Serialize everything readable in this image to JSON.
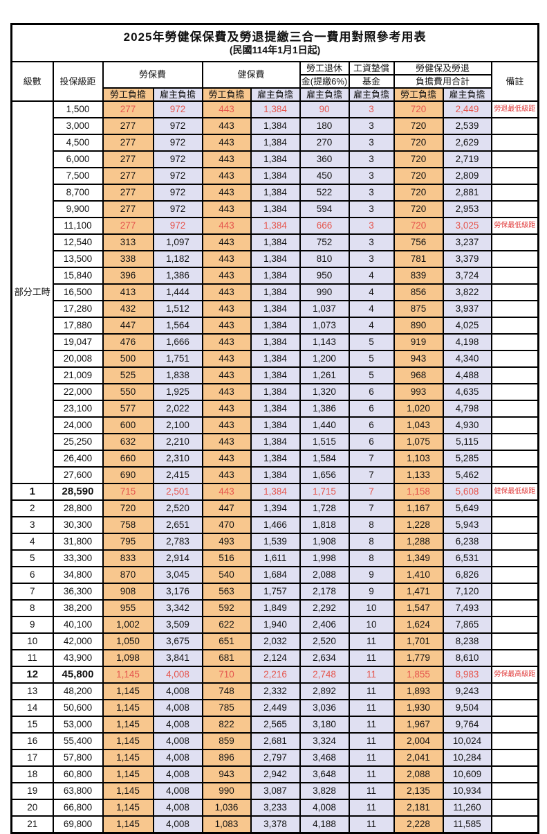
{
  "title": "2025年勞健保保費及勞退提繳三合一費用對照參考用表",
  "subtitle": "(民國114年1月1日起)",
  "header": {
    "level": "級數",
    "bracket": "投保級距",
    "labor_insurance": "勞保費",
    "health_insurance": "健保費",
    "pension_line1": "勞工退休",
    "pension_line2": "金(提繳6%)",
    "wage_fund_line1": "工資墊償",
    "wage_fund_line2": "基金",
    "total_line1": "勞健保及勞退",
    "total_line2": "負擔費用合計",
    "note": "備註",
    "employee_burden": "勞工負擔",
    "employer_burden": "雇主負擔"
  },
  "colors": {
    "employee_bg": "#f8c78e",
    "employer_bg": "#e0e0f2",
    "highlight_number_text": "#e5564e",
    "note_text": "#e03c3c",
    "border": "#000000"
  },
  "table": {
    "part_time_label": "部分工時",
    "part_time_rowspan": 23,
    "columns_order": [
      "level",
      "bracket",
      "labor_employee",
      "labor_employer",
      "health_employee",
      "health_employer",
      "pension_employer",
      "fund_employer",
      "total_employee",
      "total_employer",
      "note"
    ],
    "rows": [
      {
        "cells": [
          "",
          "1,500",
          "277",
          "972",
          "443",
          "1,384",
          "90",
          "3",
          "720",
          "2,449",
          "勞退最低級距"
        ],
        "red": true,
        "bold": false
      },
      {
        "cells": [
          "",
          "3,000",
          "277",
          "972",
          "443",
          "1,384",
          "180",
          "3",
          "720",
          "2,539",
          ""
        ],
        "red": false,
        "bold": false
      },
      {
        "cells": [
          "",
          "4,500",
          "277",
          "972",
          "443",
          "1,384",
          "270",
          "3",
          "720",
          "2,629",
          ""
        ],
        "red": false,
        "bold": false
      },
      {
        "cells": [
          "",
          "6,000",
          "277",
          "972",
          "443",
          "1,384",
          "360",
          "3",
          "720",
          "2,719",
          ""
        ],
        "red": false,
        "bold": false
      },
      {
        "cells": [
          "",
          "7,500",
          "277",
          "972",
          "443",
          "1,384",
          "450",
          "3",
          "720",
          "2,809",
          ""
        ],
        "red": false,
        "bold": false
      },
      {
        "cells": [
          "",
          "8,700",
          "277",
          "972",
          "443",
          "1,384",
          "522",
          "3",
          "720",
          "2,881",
          ""
        ],
        "red": false,
        "bold": false
      },
      {
        "cells": [
          "",
          "9,900",
          "277",
          "972",
          "443",
          "1,384",
          "594",
          "3",
          "720",
          "2,953",
          ""
        ],
        "red": false,
        "bold": false
      },
      {
        "cells": [
          "",
          "11,100",
          "277",
          "972",
          "443",
          "1,384",
          "666",
          "3",
          "720",
          "3,025",
          "勞保最低級距"
        ],
        "red": true,
        "bold": false
      },
      {
        "cells": [
          "",
          "12,540",
          "313",
          "1,097",
          "443",
          "1,384",
          "752",
          "3",
          "756",
          "3,237",
          ""
        ],
        "red": false,
        "bold": false
      },
      {
        "cells": [
          "",
          "13,500",
          "338",
          "1,182",
          "443",
          "1,384",
          "810",
          "3",
          "781",
          "3,379",
          ""
        ],
        "red": false,
        "bold": false
      },
      {
        "cells": [
          "",
          "15,840",
          "396",
          "1,386",
          "443",
          "1,384",
          "950",
          "4",
          "839",
          "3,724",
          ""
        ],
        "red": false,
        "bold": false
      },
      {
        "cells": [
          "",
          "16,500",
          "413",
          "1,444",
          "443",
          "1,384",
          "990",
          "4",
          "856",
          "3,822",
          ""
        ],
        "red": false,
        "bold": false
      },
      {
        "cells": [
          "",
          "17,280",
          "432",
          "1,512",
          "443",
          "1,384",
          "1,037",
          "4",
          "875",
          "3,937",
          ""
        ],
        "red": false,
        "bold": false
      },
      {
        "cells": [
          "",
          "17,880",
          "447",
          "1,564",
          "443",
          "1,384",
          "1,073",
          "4",
          "890",
          "4,025",
          ""
        ],
        "red": false,
        "bold": false
      },
      {
        "cells": [
          "",
          "19,047",
          "476",
          "1,666",
          "443",
          "1,384",
          "1,143",
          "5",
          "919",
          "4,198",
          ""
        ],
        "red": false,
        "bold": false
      },
      {
        "cells": [
          "",
          "20,008",
          "500",
          "1,751",
          "443",
          "1,384",
          "1,200",
          "5",
          "943",
          "4,340",
          ""
        ],
        "red": false,
        "bold": false
      },
      {
        "cells": [
          "",
          "21,009",
          "525",
          "1,838",
          "443",
          "1,384",
          "1,261",
          "5",
          "968",
          "4,488",
          ""
        ],
        "red": false,
        "bold": false
      },
      {
        "cells": [
          "",
          "22,000",
          "550",
          "1,925",
          "443",
          "1,384",
          "1,320",
          "6",
          "993",
          "4,635",
          ""
        ],
        "red": false,
        "bold": false
      },
      {
        "cells": [
          "",
          "23,100",
          "577",
          "2,022",
          "443",
          "1,384",
          "1,386",
          "6",
          "1,020",
          "4,798",
          ""
        ],
        "red": false,
        "bold": false
      },
      {
        "cells": [
          "",
          "24,000",
          "600",
          "2,100",
          "443",
          "1,384",
          "1,440",
          "6",
          "1,043",
          "4,930",
          ""
        ],
        "red": false,
        "bold": false
      },
      {
        "cells": [
          "",
          "25,250",
          "632",
          "2,210",
          "443",
          "1,384",
          "1,515",
          "6",
          "1,075",
          "5,115",
          ""
        ],
        "red": false,
        "bold": false
      },
      {
        "cells": [
          "",
          "26,400",
          "660",
          "2,310",
          "443",
          "1,384",
          "1,584",
          "7",
          "1,103",
          "5,285",
          ""
        ],
        "red": false,
        "bold": false
      },
      {
        "cells": [
          "",
          "27,600",
          "690",
          "2,415",
          "443",
          "1,384",
          "1,656",
          "7",
          "1,133",
          "5,462",
          ""
        ],
        "red": false,
        "bold": false
      },
      {
        "cells": [
          "1",
          "28,590",
          "715",
          "2,501",
          "443",
          "1,384",
          "1,715",
          "7",
          "1,158",
          "5,608",
          "健保最低級距"
        ],
        "red": true,
        "bold": true
      },
      {
        "cells": [
          "2",
          "28,800",
          "720",
          "2,520",
          "447",
          "1,394",
          "1,728",
          "7",
          "1,167",
          "5,649",
          ""
        ],
        "red": false,
        "bold": false
      },
      {
        "cells": [
          "3",
          "30,300",
          "758",
          "2,651",
          "470",
          "1,466",
          "1,818",
          "8",
          "1,228",
          "5,943",
          ""
        ],
        "red": false,
        "bold": false
      },
      {
        "cells": [
          "4",
          "31,800",
          "795",
          "2,783",
          "493",
          "1,539",
          "1,908",
          "8",
          "1,288",
          "6,238",
          ""
        ],
        "red": false,
        "bold": false
      },
      {
        "cells": [
          "5",
          "33,300",
          "833",
          "2,914",
          "516",
          "1,611",
          "1,998",
          "8",
          "1,349",
          "6,531",
          ""
        ],
        "red": false,
        "bold": false
      },
      {
        "cells": [
          "6",
          "34,800",
          "870",
          "3,045",
          "540",
          "1,684",
          "2,088",
          "9",
          "1,410",
          "6,826",
          ""
        ],
        "red": false,
        "bold": false
      },
      {
        "cells": [
          "7",
          "36,300",
          "908",
          "3,176",
          "563",
          "1,757",
          "2,178",
          "9",
          "1,471",
          "7,120",
          ""
        ],
        "red": false,
        "bold": false
      },
      {
        "cells": [
          "8",
          "38,200",
          "955",
          "3,342",
          "592",
          "1,849",
          "2,292",
          "10",
          "1,547",
          "7,493",
          ""
        ],
        "red": false,
        "bold": false
      },
      {
        "cells": [
          "9",
          "40,100",
          "1,002",
          "3,509",
          "622",
          "1,940",
          "2,406",
          "10",
          "1,624",
          "7,865",
          ""
        ],
        "red": false,
        "bold": false
      },
      {
        "cells": [
          "10",
          "42,000",
          "1,050",
          "3,675",
          "651",
          "2,032",
          "2,520",
          "11",
          "1,701",
          "8,238",
          ""
        ],
        "red": false,
        "bold": false
      },
      {
        "cells": [
          "11",
          "43,900",
          "1,098",
          "3,841",
          "681",
          "2,124",
          "2,634",
          "11",
          "1,779",
          "8,610",
          ""
        ],
        "red": false,
        "bold": false
      },
      {
        "cells": [
          "12",
          "45,800",
          "1,145",
          "4,008",
          "710",
          "2,216",
          "2,748",
          "11",
          "1,855",
          "8,983",
          "勞保最高級距"
        ],
        "red": true,
        "bold": true
      },
      {
        "cells": [
          "13",
          "48,200",
          "1,145",
          "4,008",
          "748",
          "2,332",
          "2,892",
          "11",
          "1,893",
          "9,243",
          ""
        ],
        "red": false,
        "bold": false
      },
      {
        "cells": [
          "14",
          "50,600",
          "1,145",
          "4,008",
          "785",
          "2,449",
          "3,036",
          "11",
          "1,930",
          "9,504",
          ""
        ],
        "red": false,
        "bold": false
      },
      {
        "cells": [
          "15",
          "53,000",
          "1,145",
          "4,008",
          "822",
          "2,565",
          "3,180",
          "11",
          "1,967",
          "9,764",
          ""
        ],
        "red": false,
        "bold": false
      },
      {
        "cells": [
          "16",
          "55,400",
          "1,145",
          "4,008",
          "859",
          "2,681",
          "3,324",
          "11",
          "2,004",
          "10,024",
          ""
        ],
        "red": false,
        "bold": false
      },
      {
        "cells": [
          "17",
          "57,800",
          "1,145",
          "4,008",
          "896",
          "2,797",
          "3,468",
          "11",
          "2,041",
          "10,284",
          ""
        ],
        "red": false,
        "bold": false
      },
      {
        "cells": [
          "18",
          "60,800",
          "1,145",
          "4,008",
          "943",
          "2,942",
          "3,648",
          "11",
          "2,088",
          "10,609",
          ""
        ],
        "red": false,
        "bold": false
      },
      {
        "cells": [
          "19",
          "63,800",
          "1,145",
          "4,008",
          "990",
          "3,087",
          "3,828",
          "11",
          "2,135",
          "10,934",
          ""
        ],
        "red": false,
        "bold": false
      },
      {
        "cells": [
          "20",
          "66,800",
          "1,145",
          "4,008",
          "1,036",
          "3,233",
          "4,008",
          "11",
          "2,181",
          "11,260",
          ""
        ],
        "red": false,
        "bold": false
      },
      {
        "cells": [
          "21",
          "69,800",
          "1,145",
          "4,008",
          "1,083",
          "3,378",
          "4,188",
          "11",
          "2,228",
          "11,585",
          ""
        ],
        "red": false,
        "bold": false
      }
    ]
  }
}
